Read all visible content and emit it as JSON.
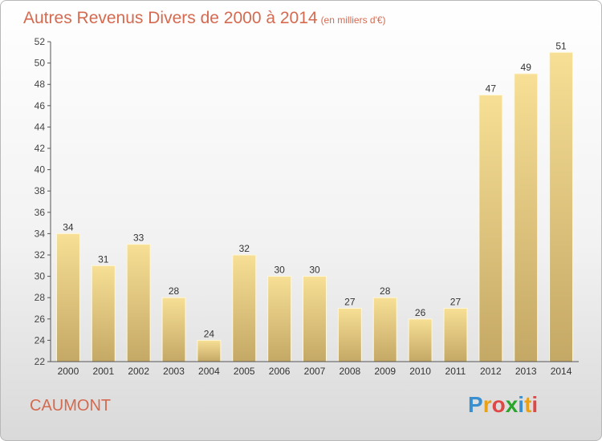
{
  "chart_data": {
    "type": "bar",
    "title": "Autres Revenus Divers de 2000 à 2014",
    "subtitle": "(en milliers d'€)",
    "categories": [
      "2000",
      "2001",
      "2002",
      "2003",
      "2004",
      "2005",
      "2006",
      "2007",
      "2008",
      "2009",
      "2010",
      "2011",
      "2012",
      "2013",
      "2014"
    ],
    "values": [
      34,
      31,
      33,
      28,
      24,
      32,
      30,
      30,
      27,
      28,
      26,
      27,
      47,
      49,
      51
    ],
    "data_labels": [
      "34",
      "31",
      "33",
      "28",
      "24",
      "32",
      "30",
      "30",
      "27",
      "28",
      "26",
      "27",
      "47",
      "49",
      "51"
    ],
    "ylim": [
      22,
      52
    ],
    "yticks": [
      22,
      24,
      26,
      28,
      30,
      32,
      34,
      36,
      38,
      40,
      42,
      44,
      46,
      48,
      50,
      52
    ],
    "grid": false,
    "bar_color": "#e8d08a"
  },
  "footer": {
    "commune": "CAUMONT",
    "logo": "Proxiti"
  }
}
